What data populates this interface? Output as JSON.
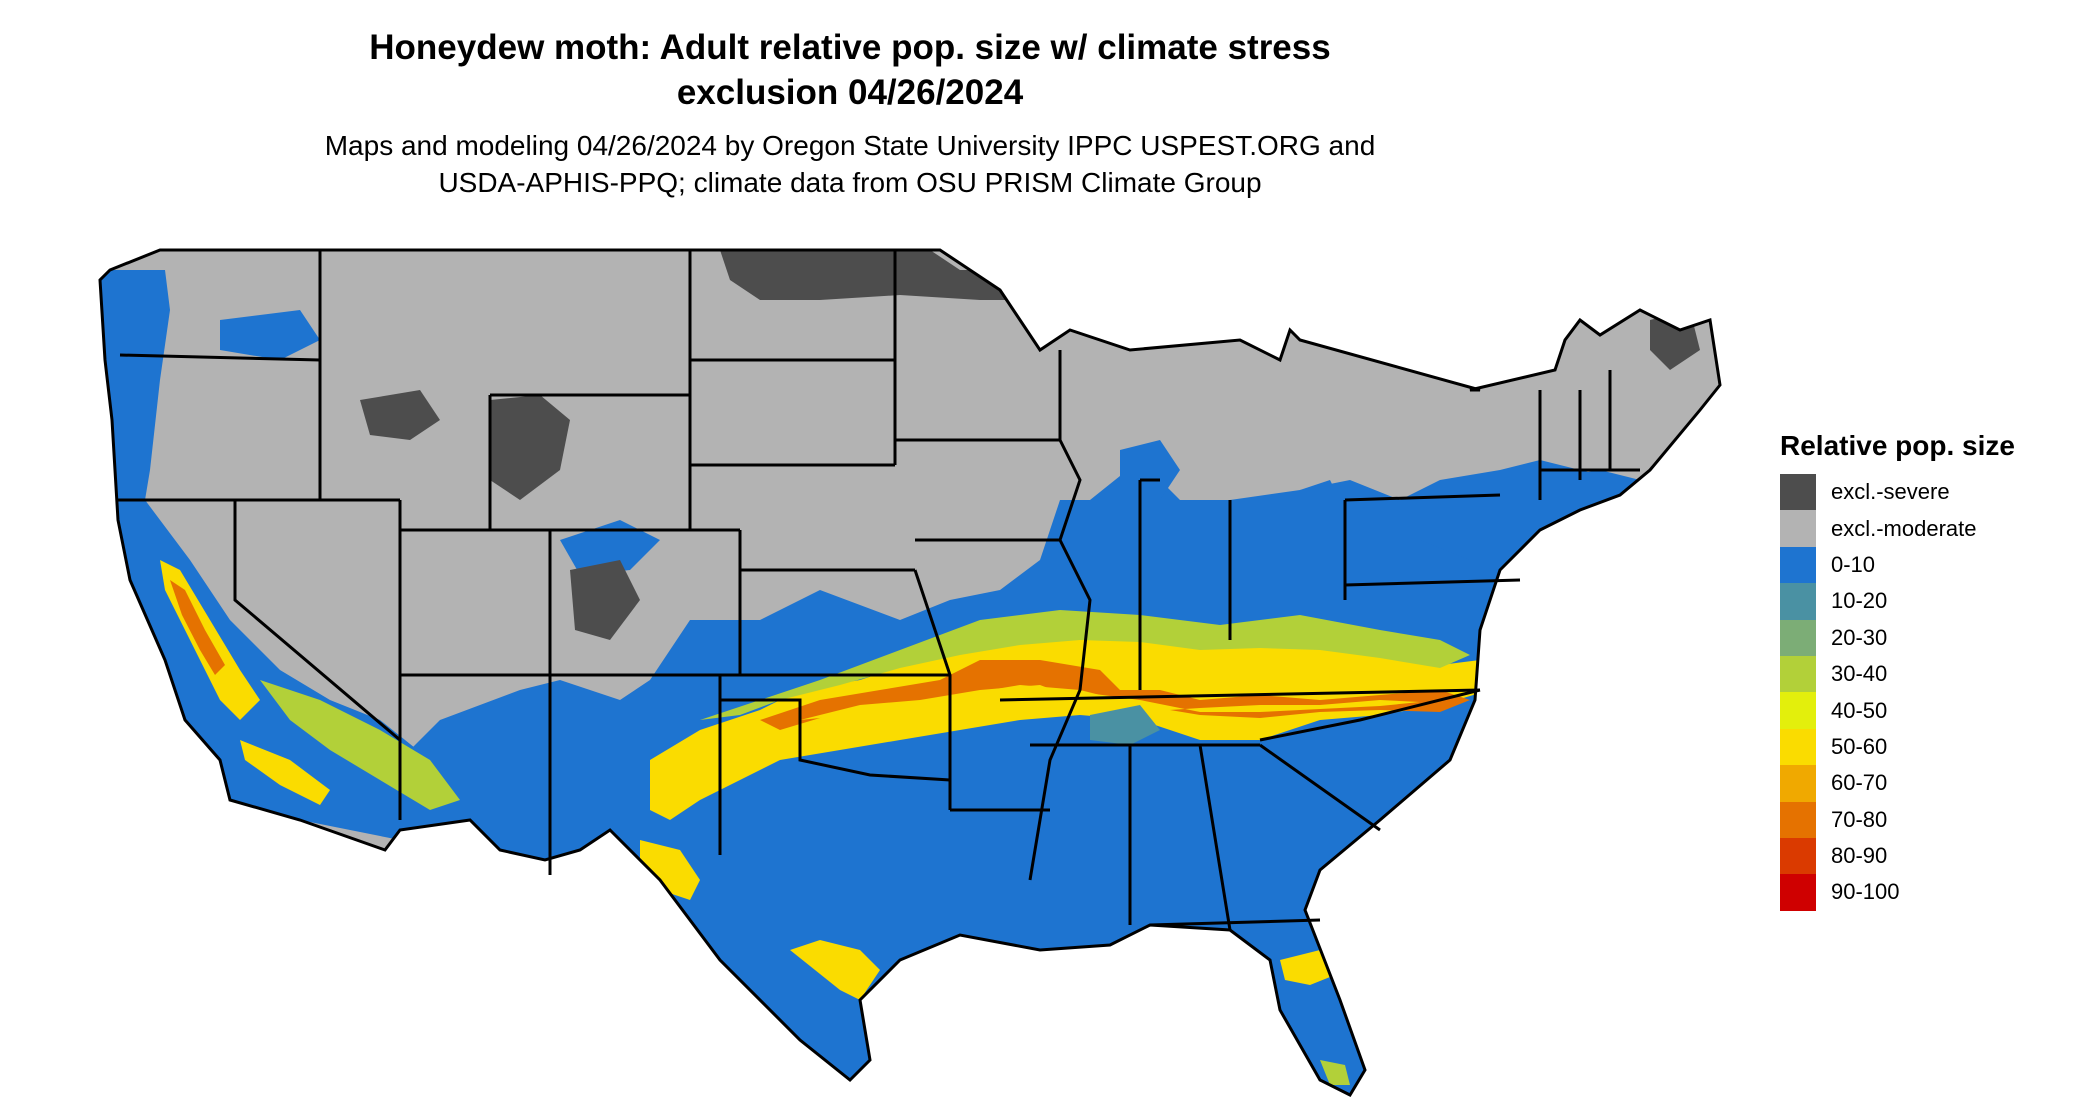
{
  "title": {
    "line1": "Honeydew moth: Adult relative pop. size w/ climate stress",
    "line2": "exclusion 04/26/2024"
  },
  "subtitle": {
    "line1": "Maps and modeling 04/26/2024 by Oregon State University IPPC USPEST.ORG and",
    "line2": "USDA-APHIS-PPQ; climate data from OSU PRISM Climate Group"
  },
  "legend": {
    "title": "Relative pop. size",
    "items": [
      {
        "label": "excl.-severe",
        "color": "#4d4d4d"
      },
      {
        "label": "excl.-moderate",
        "color": "#b3b3b3"
      },
      {
        "label": "0-10",
        "color": "#1e74d0"
      },
      {
        "label": "10-20",
        "color": "#4a91a3"
      },
      {
        "label": "20-30",
        "color": "#7cad76"
      },
      {
        "label": "30-40",
        "color": "#b2d039"
      },
      {
        "label": "40-50",
        "color": "#e3ef0c"
      },
      {
        "label": "50-60",
        "color": "#fadc00"
      },
      {
        "label": "60-70",
        "color": "#f0a900"
      },
      {
        "label": "70-80",
        "color": "#e57200"
      },
      {
        "label": "80-90",
        "color": "#da3a00"
      },
      {
        "label": "90-100",
        "color": "#cf0000"
      }
    ]
  }
}
